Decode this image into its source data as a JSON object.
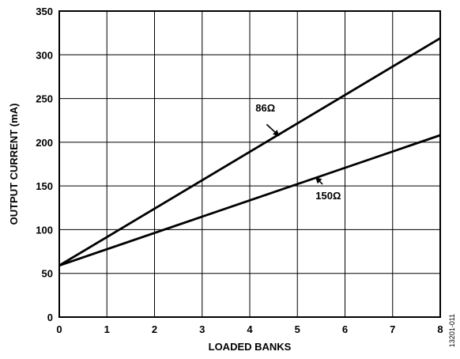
{
  "chart_data": {
    "type": "line",
    "title": "",
    "xlabel": "LOADED BANKS",
    "ylabel": "OUTPUT CURRENT (mA)",
    "xlim": [
      0,
      8
    ],
    "ylim": [
      0,
      350
    ],
    "xticks": [
      "0",
      "1",
      "2",
      "3",
      "4",
      "5",
      "6",
      "7",
      "8"
    ],
    "yticks": [
      "0",
      "50",
      "100",
      "150",
      "200",
      "250",
      "300",
      "350"
    ],
    "grid": true,
    "series": [
      {
        "name": "86Ω",
        "x": [
          0,
          8
        ],
        "y": [
          59,
          319
        ]
      },
      {
        "name": "150Ω",
        "x": [
          0,
          8
        ],
        "y": [
          59,
          208
        ]
      }
    ],
    "annotations": [
      {
        "text": "86Ω",
        "series": 0,
        "point": [
          4.6,
          208
        ]
      },
      {
        "text": "150Ω",
        "series": 1,
        "point": [
          5.4,
          159
        ]
      }
    ],
    "figure_id": "13201-011"
  }
}
